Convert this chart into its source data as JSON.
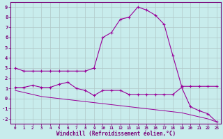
{
  "xlabel": "Windchill (Refroidissement éolien,°C)",
  "bg_color": "#c8ecec",
  "grid_color": "#b0c8c8",
  "line_color": "#990099",
  "xlim": [
    -0.5,
    23.5
  ],
  "ylim": [
    -2.5,
    9.5
  ],
  "xticks": [
    0,
    1,
    2,
    3,
    4,
    5,
    6,
    7,
    8,
    9,
    10,
    11,
    12,
    13,
    14,
    15,
    16,
    17,
    18,
    19,
    20,
    21,
    22,
    23
  ],
  "yticks": [
    -2,
    -1,
    0,
    1,
    2,
    3,
    4,
    5,
    6,
    7,
    8,
    9
  ],
  "line1_x": [
    0,
    1,
    2,
    3,
    4,
    5,
    6,
    7,
    8,
    9,
    10,
    11,
    12,
    13,
    14,
    15,
    16,
    17,
    18,
    19,
    20,
    21,
    22,
    23
  ],
  "line1_y": [
    3.0,
    2.7,
    2.7,
    2.7,
    2.7,
    2.7,
    2.7,
    2.7,
    2.7,
    3.0,
    6.0,
    6.5,
    7.8,
    8.0,
    9.0,
    8.7,
    8.2,
    7.3,
    4.2,
    1.2,
    1.2,
    1.2,
    1.2,
    1.2
  ],
  "line2_x": [
    0,
    1,
    2,
    3,
    4,
    5,
    6,
    7,
    8,
    9,
    10,
    11,
    12,
    13,
    14,
    15,
    16,
    17,
    18,
    19,
    20,
    21,
    22,
    23
  ],
  "line2_y": [
    1.1,
    1.1,
    1.3,
    1.1,
    1.1,
    1.4,
    1.6,
    1.0,
    0.8,
    0.3,
    0.8,
    0.8,
    0.8,
    0.4,
    0.4,
    0.4,
    0.4,
    0.4,
    0.4,
    1.1,
    -0.8,
    -1.2,
    -1.5,
    -2.3
  ],
  "line3_x": [
    0,
    1,
    2,
    3,
    4,
    5,
    6,
    7,
    8,
    9,
    10,
    11,
    12,
    13,
    14,
    15,
    16,
    17,
    18,
    19,
    20,
    21,
    22,
    23
  ],
  "line3_y": [
    0.8,
    0.6,
    0.4,
    0.2,
    0.1,
    -0.0,
    -0.1,
    -0.2,
    -0.3,
    -0.4,
    -0.5,
    -0.6,
    -0.7,
    -0.8,
    -0.9,
    -1.0,
    -1.1,
    -1.2,
    -1.3,
    -1.4,
    -1.6,
    -1.8,
    -2.0,
    -2.3
  ]
}
